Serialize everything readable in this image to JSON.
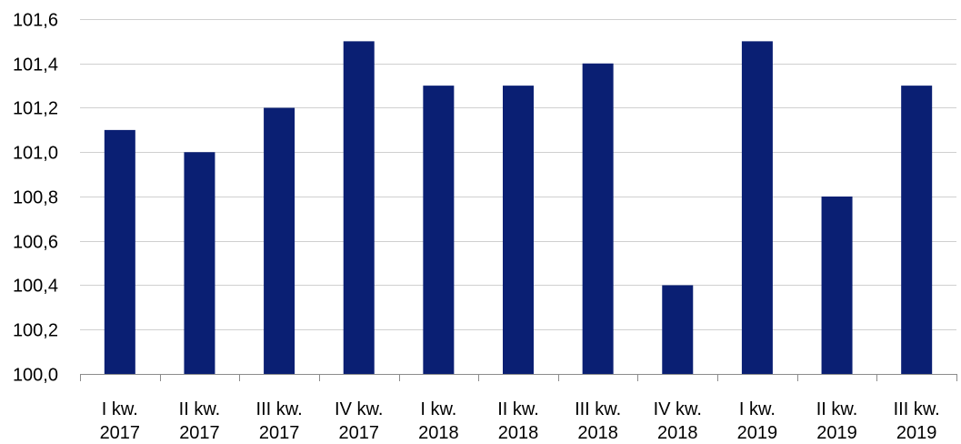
{
  "chart_data": {
    "type": "bar",
    "title": "",
    "xlabel": "",
    "ylabel": "",
    "categories": [
      [
        "I kw.",
        "2017"
      ],
      [
        "II kw.",
        "2017"
      ],
      [
        "III kw.",
        "2017"
      ],
      [
        "IV kw.",
        "2017"
      ],
      [
        "I kw.",
        "2018"
      ],
      [
        "II kw.",
        "2018"
      ],
      [
        "III kw.",
        "2018"
      ],
      [
        "IV kw.",
        "2018"
      ],
      [
        "I kw.",
        "2019"
      ],
      [
        "II kw.",
        "2019"
      ],
      [
        "III kw.",
        "2019"
      ]
    ],
    "values": [
      101.1,
      101.0,
      101.2,
      101.5,
      101.3,
      101.3,
      101.4,
      100.4,
      101.5,
      100.8,
      101.3
    ],
    "ylim": [
      100.0,
      101.6
    ],
    "yticks": [
      100.0,
      100.2,
      100.4,
      100.6,
      100.8,
      101.0,
      101.2,
      101.4,
      101.6
    ],
    "ytick_labels": [
      "100,0",
      "100,2",
      "100,4",
      "100,6",
      "100,8",
      "101,0",
      "101,2",
      "101,4",
      "101,6"
    ],
    "grid": true,
    "legend": "none",
    "bar_color": "#0a1f73"
  }
}
